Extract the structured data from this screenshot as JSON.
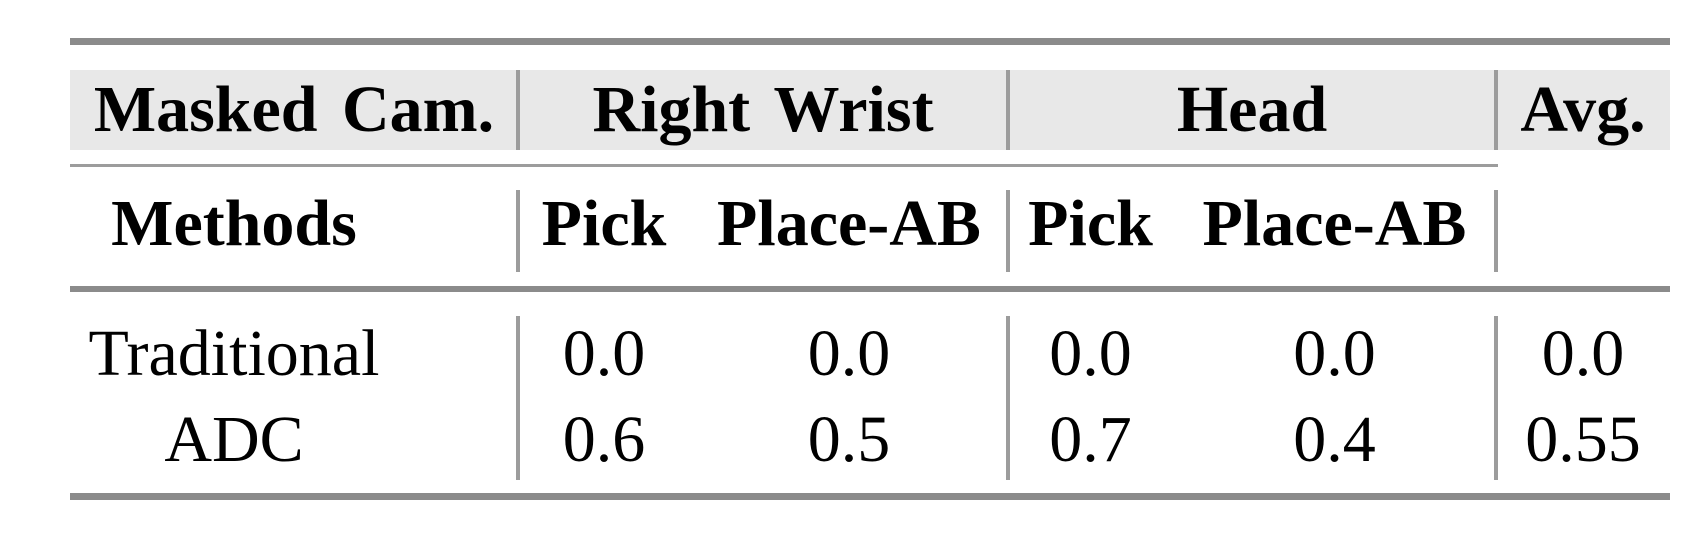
{
  "table": {
    "header_row1": {
      "masked_cam": "Masked Cam.",
      "right_wrist": "Right Wrist",
      "head": "Head",
      "avg": "Avg."
    },
    "header_row2": {
      "methods": "Methods",
      "rw_pick": "Pick",
      "rw_place_ab": "Place-AB",
      "head_pick": "Pick",
      "head_place_ab": "Place-AB"
    },
    "rows": [
      {
        "method": "Traditional",
        "values": [
          "0.0",
          "0.0",
          "0.0",
          "0.0",
          "0.0"
        ]
      },
      {
        "method": "ADC",
        "values": [
          "0.6",
          "0.5",
          "0.7",
          "0.4",
          "0.55"
        ]
      }
    ],
    "colors": {
      "band_bg": "#e8e8e8",
      "rule_thick": "#8b8b8b",
      "rule_thin": "#9c9c9c",
      "text": "#000000",
      "background": "#ffffff"
    }
  }
}
